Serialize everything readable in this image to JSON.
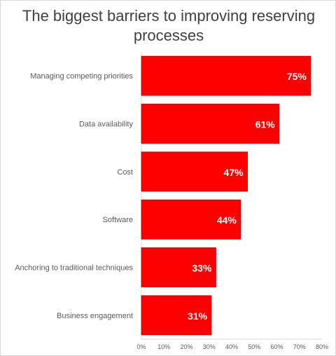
{
  "chart_data": {
    "type": "bar",
    "orientation": "horizontal",
    "title": "The biggest barriers to improving reserving processes",
    "categories": [
      "Managing competing priorities",
      "Data availability",
      "Cost",
      "Software",
      "Anchoring to traditional techniques",
      "Business engagement"
    ],
    "values": [
      75,
      61,
      47,
      44,
      33,
      31
    ],
    "data_labels": [
      "75%",
      "61%",
      "47%",
      "44%",
      "33%",
      "31%"
    ],
    "xlim": [
      0,
      80
    ],
    "x_ticks": [
      0,
      10,
      20,
      30,
      40,
      50,
      60,
      70,
      80
    ],
    "x_tick_labels": [
      "0%",
      "10%",
      "20%",
      "30%",
      "40%",
      "50%",
      "60%",
      "70%",
      "80%"
    ],
    "grid": false,
    "legend": "none",
    "bar_color": "#ff0000",
    "bar_edge_color": "#c00000",
    "data_label_color": "#ffffff",
    "text_color": "#595959"
  }
}
